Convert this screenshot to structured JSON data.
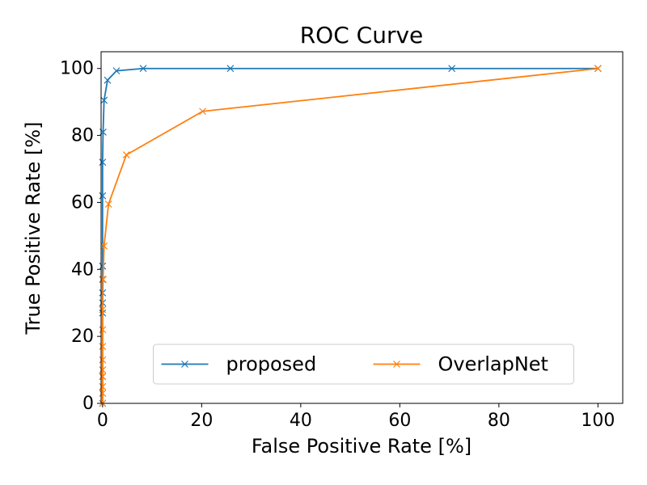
{
  "chart_data": {
    "type": "line",
    "title": "ROC Curve",
    "x_label": "False Positive Rate [%]",
    "y_label": "True Positive Rate [%]",
    "series": [
      {
        "name": "proposed",
        "color": "#1f77b4",
        "x": [
          0,
          0,
          0,
          0,
          0,
          0,
          0,
          0,
          0,
          0.1,
          0.3,
          1,
          2.8,
          8.2,
          25.8,
          70.5,
          100
        ],
        "values": [
          0,
          8,
          27,
          30,
          33,
          37,
          41,
          62,
          72,
          81,
          90.5,
          96.5,
          99.3,
          100,
          100,
          100,
          100
        ]
      },
      {
        "name": "OverlapNet",
        "color": "#ff7f0e",
        "x": [
          0,
          0,
          0,
          0,
          0,
          0,
          0,
          0,
          0,
          0.1,
          0.3,
          1.2,
          4.8,
          20.2,
          100
        ],
        "values": [
          0,
          3,
          5,
          8,
          10,
          13,
          17,
          22,
          28,
          37,
          47,
          59.5,
          74.2,
          87.2,
          100
        ]
      }
    ],
    "xlim": [
      -0.3,
      105
    ],
    "ylim": [
      0,
      105
    ],
    "xticks": [
      0,
      20,
      40,
      60,
      80,
      100
    ],
    "yticks": [
      0,
      20,
      40,
      60,
      80,
      100
    ],
    "legend": "lower center"
  }
}
